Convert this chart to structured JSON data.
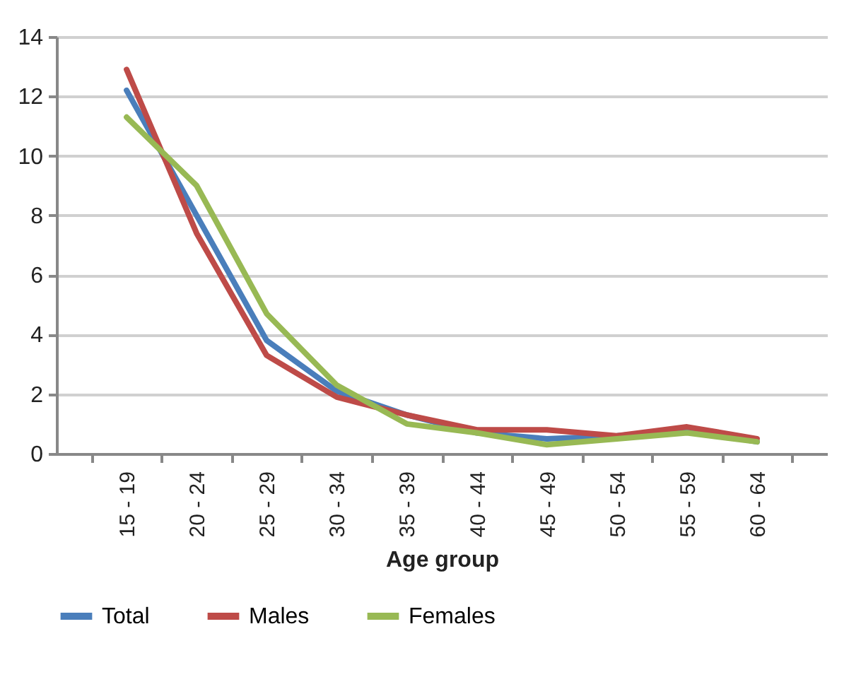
{
  "chart_data": {
    "type": "line",
    "xlabel": "Age group",
    "categories": [
      "15 - 19",
      "20 - 24",
      "25 - 29",
      "30 - 34",
      "35 - 39",
      "40 - 44",
      "45 - 49",
      "50 - 54",
      "55 - 59",
      "60 - 64"
    ],
    "series": [
      {
        "name": "Total",
        "color": "#4a7ebb",
        "values": [
          12.2,
          8.0,
          3.8,
          2.1,
          1.3,
          0.7,
          0.5,
          0.6,
          0.8,
          0.4
        ]
      },
      {
        "name": "Males",
        "color": "#be4b48",
        "values": [
          12.9,
          7.4,
          3.3,
          1.9,
          1.3,
          0.8,
          0.8,
          0.6,
          0.9,
          0.5
        ]
      },
      {
        "name": "Females",
        "color": "#98b954",
        "values": [
          11.3,
          9.0,
          4.7,
          2.3,
          1.0,
          0.7,
          0.3,
          0.5,
          0.7,
          0.4
        ]
      }
    ],
    "ylim": [
      0,
      14
    ],
    "yticks": [
      0,
      2,
      4,
      6,
      8,
      10,
      12,
      14
    ],
    "grid": "y",
    "legend": "bottom",
    "marker": "none",
    "line_style": "solid"
  }
}
